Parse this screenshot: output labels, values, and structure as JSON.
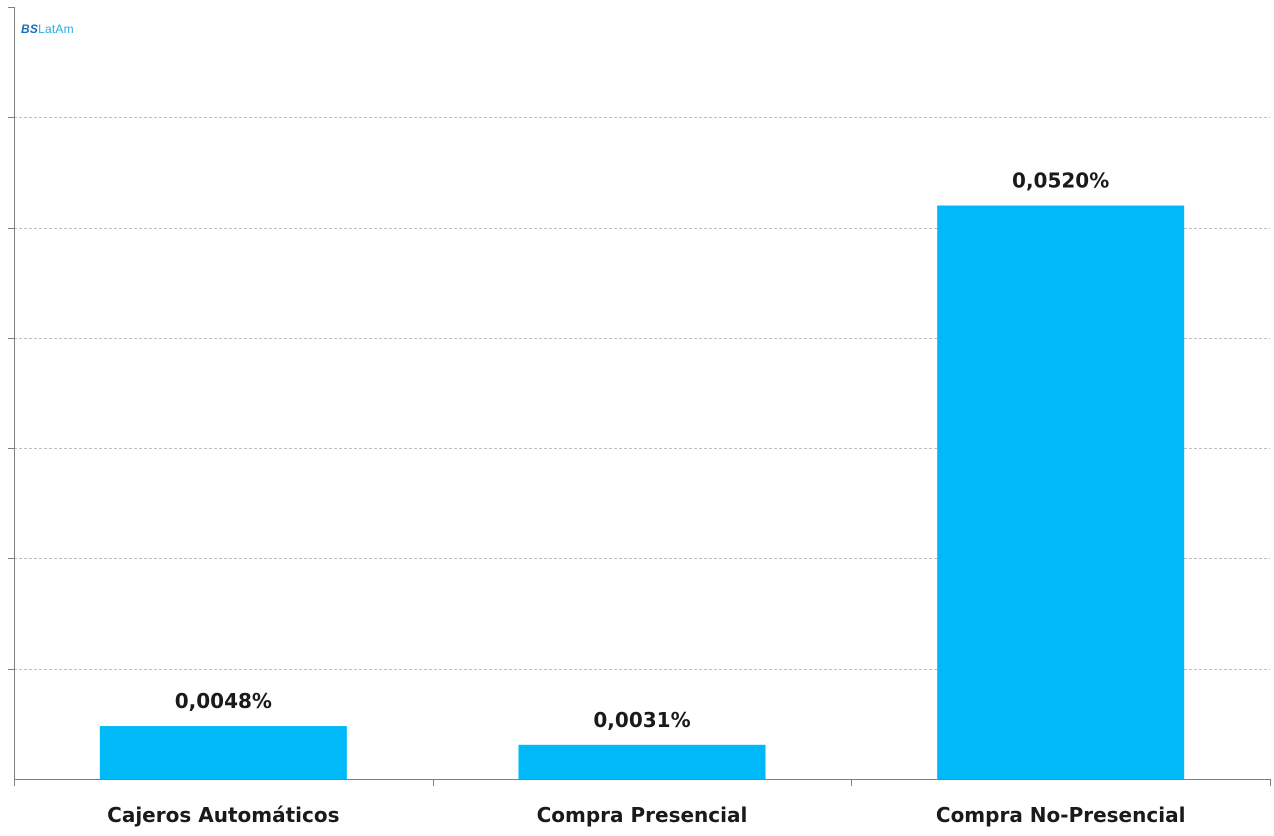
{
  "watermark": {
    "prefix": "BS",
    "suffix": "LatAm"
  },
  "chart_data": {
    "type": "bar",
    "title": "",
    "xlabel": "",
    "ylabel": "",
    "categories": [
      "Cajeros Automáticos",
      "Compra Presencial",
      "Compra No-Presencial"
    ],
    "values": [
      0.0048,
      0.0031,
      0.052
    ],
    "data_labels": [
      "0,0048%",
      "0,0031%",
      "0,0520%"
    ],
    "ylim": [
      0,
      0.07
    ],
    "grid": true,
    "legend": "none",
    "bar_color": "#00b9f8",
    "grid_color": "#bfbfbf",
    "axis_color": "#808080"
  }
}
